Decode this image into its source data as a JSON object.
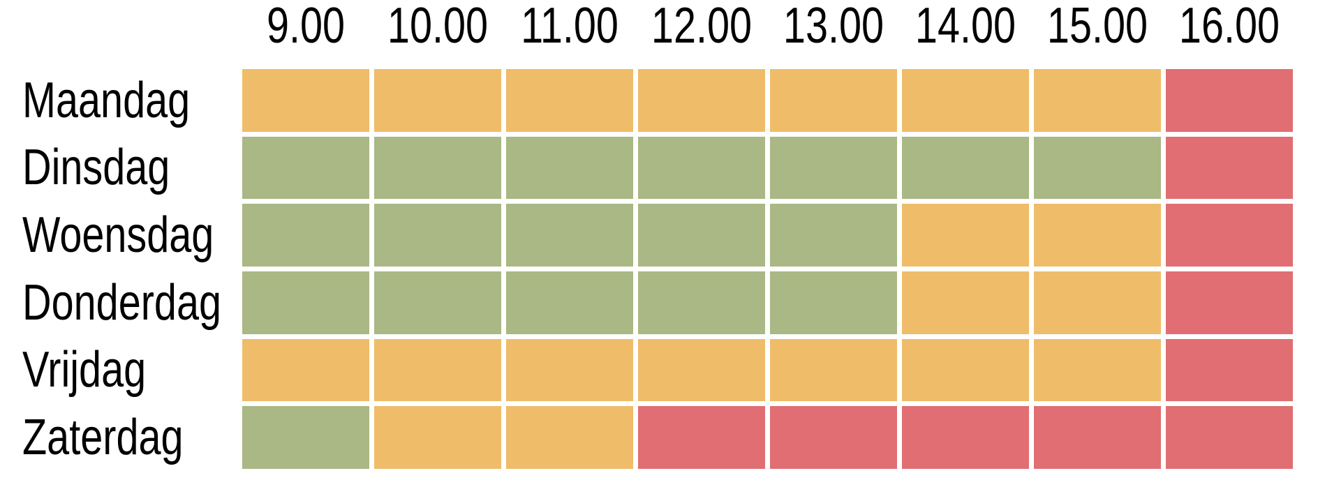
{
  "chart_data": {
    "type": "heatmap",
    "title": "",
    "legend_position": "none",
    "grid": "gaps-white",
    "x_axis_position": "top",
    "rows": [
      "Maandag",
      "Dinsdag",
      "Woensdag",
      "Donderdag",
      "Vrijdag",
      "Zaterdag"
    ],
    "columns": [
      "9.00",
      "10.00",
      "11.00",
      "12.00",
      "13.00",
      "14.00",
      "15.00",
      "16.00"
    ],
    "cells": [
      [
        "orange",
        "orange",
        "orange",
        "orange",
        "orange",
        "orange",
        "orange",
        "red"
      ],
      [
        "green",
        "green",
        "green",
        "green",
        "green",
        "green",
        "green",
        "red"
      ],
      [
        "green",
        "green",
        "green",
        "green",
        "green",
        "orange",
        "orange",
        "red"
      ],
      [
        "green",
        "green",
        "green",
        "green",
        "green",
        "orange",
        "orange",
        "red"
      ],
      [
        "orange",
        "orange",
        "orange",
        "orange",
        "orange",
        "orange",
        "orange",
        "red"
      ],
      [
        "green",
        "orange",
        "orange",
        "red",
        "red",
        "red",
        "red",
        "red"
      ]
    ],
    "palette": {
      "green": "#A9B884",
      "orange": "#EFBC69",
      "red": "#E06E72"
    },
    "background_color": "#FFFFFF",
    "text_color": "#000000"
  }
}
